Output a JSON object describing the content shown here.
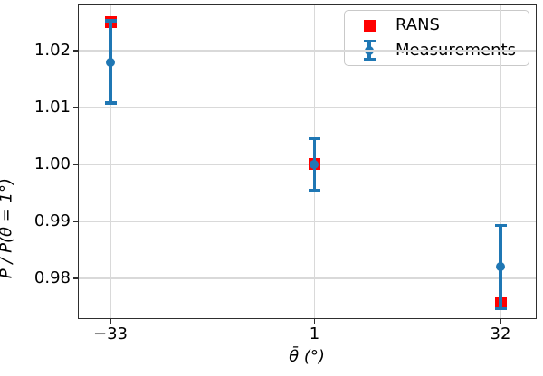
{
  "chart_data": {
    "type": "scatter",
    "title": "",
    "x": [
      -33,
      1,
      32
    ],
    "series": [
      {
        "name": "RANS",
        "marker": "square",
        "color": "#ff0000",
        "values": [
          1.025,
          1.0,
          0.9757
        ]
      },
      {
        "name": "Measurements",
        "marker": "circle-errorbar",
        "color": "#1f77b4",
        "values": [
          1.018,
          1.0,
          0.982
        ],
        "yerr": [
          0.0072,
          0.0045,
          0.0073
        ]
      }
    ],
    "xlabel": "θ̄ (°)",
    "ylabel": "P̂ / P̂(θ̄ = 1°)",
    "xticks": {
      "values": [
        -33,
        1,
        32
      ],
      "labels": [
        "−33",
        "1",
        "32"
      ]
    },
    "yticks": {
      "values": [
        0.98,
        0.99,
        1.0,
        1.01,
        1.02
      ],
      "labels": [
        "0.98",
        "0.99",
        "1.00",
        "1.01",
        "1.02"
      ]
    },
    "xlim": [
      -38.43,
      38.03
    ],
    "ylim": [
      0.97285,
      1.02825
    ],
    "grid": true,
    "legend_position": "upper right",
    "grid_color": "#d9d9d9",
    "spine_color": "#2e2e2e"
  }
}
